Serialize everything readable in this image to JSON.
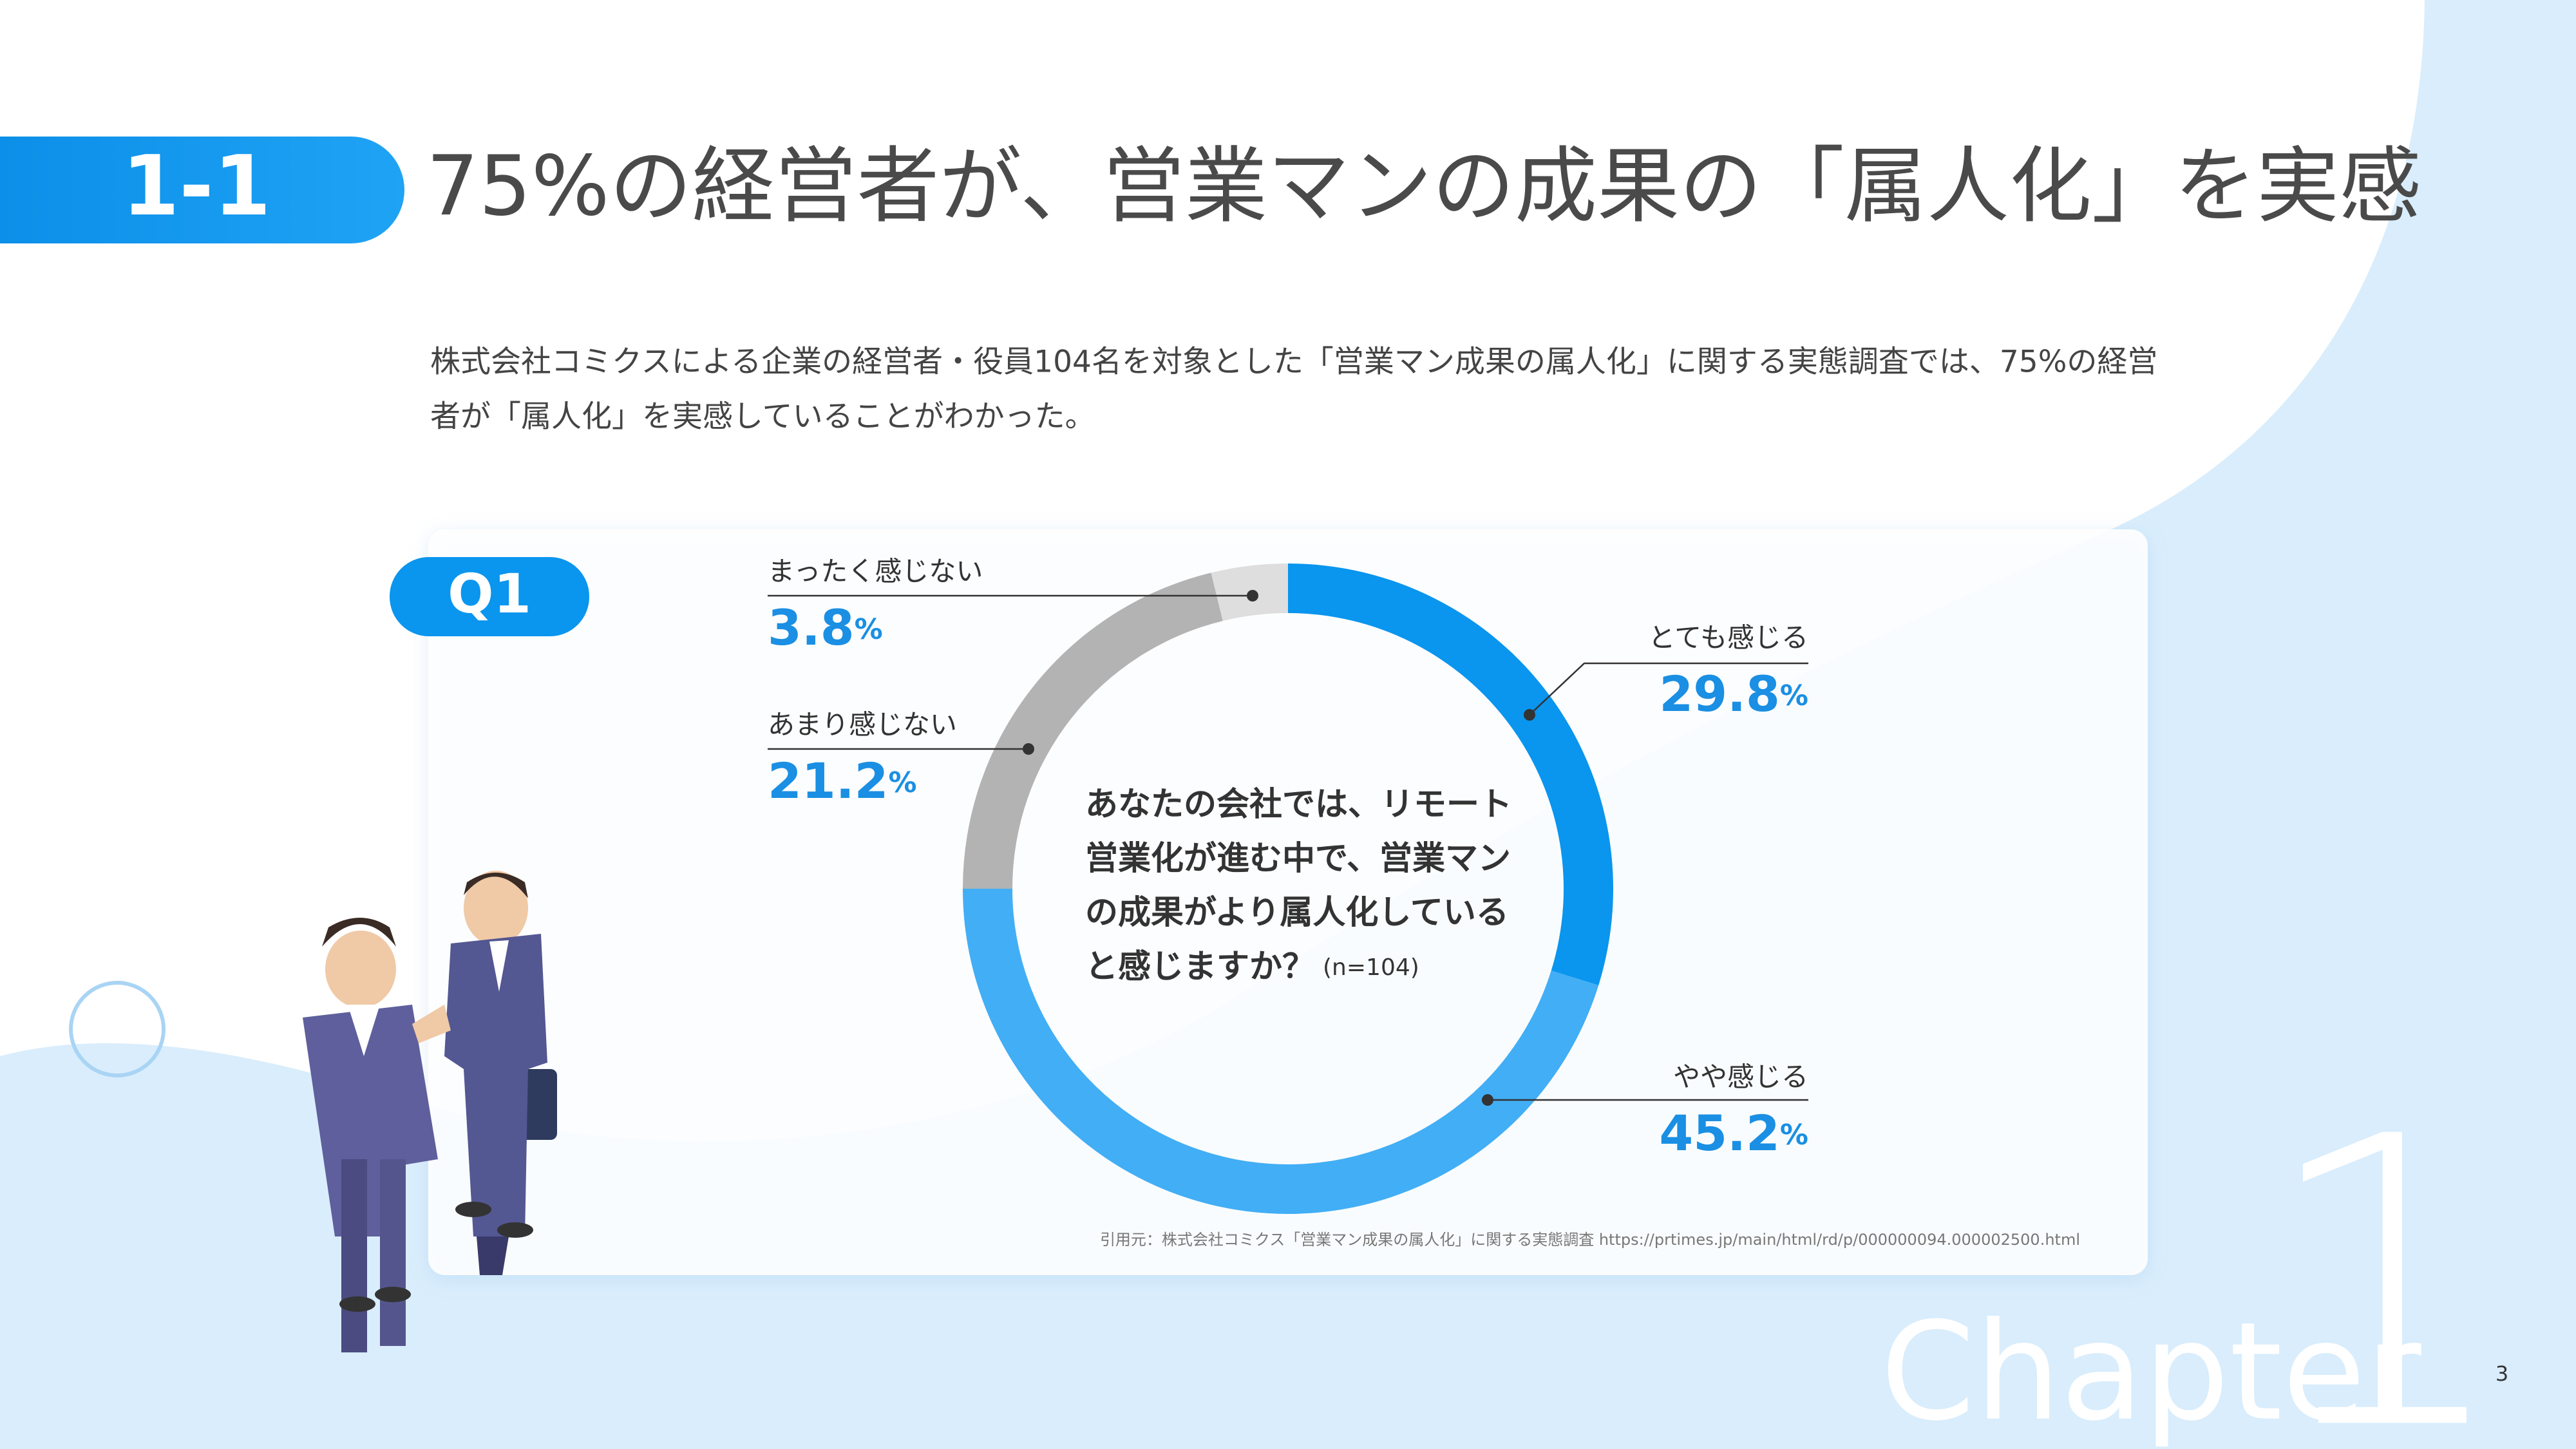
{
  "header": {
    "section": "1-1",
    "title": "75%の経営者が、営業マンの成果の「属人化」を実感"
  },
  "description": {
    "lines": [
      "株式会社コミクスによる企業の経営者・役員104名を対象とした「営業マン成果の属人化」に関する実態調査では、75%の経営",
      "者が「属人化」を実感していることがわかった。"
    ]
  },
  "question_badge": "Q1",
  "chart_data": {
    "type": "donut",
    "categories": [
      "とても感じる",
      "やや感じる",
      "あまり感じない",
      "まったく感じない"
    ],
    "values": [
      29.8,
      45.2,
      21.2,
      3.8
    ],
    "unit": "%",
    "colors": [
      "#0a95ee",
      "#42aef5",
      "#b3b3b3",
      "#dedede"
    ],
    "center_text": [
      "あなたの会社では、リモート",
      "営業化が進む中で、営業マン",
      "の成果がより属人化している",
      "と感じますか？"
    ],
    "sample_note": "(n=104)"
  },
  "source": "引用元：株式会社コミクス「営業マン成果の属人化」に関する実態調査 https://prtimes.jp/main/html/rd/p/000000094.000002500.html",
  "chapter": {
    "word": "Chapter",
    "number": "1"
  },
  "page_number": "3"
}
